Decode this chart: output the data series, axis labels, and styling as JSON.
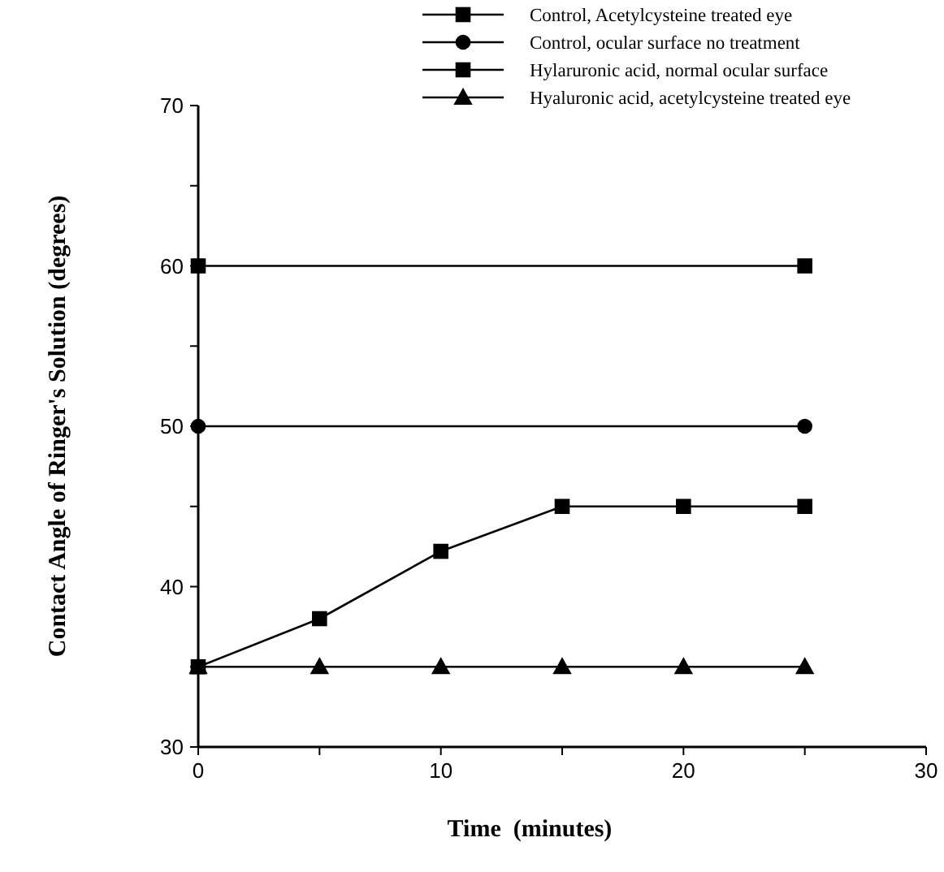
{
  "chart_data": {
    "type": "line",
    "xlabel": "Time  (minutes)",
    "ylabel": "Contact Angle of Ringer's Solution (degrees)",
    "xlim": [
      0,
      30
    ],
    "xticks": [
      0,
      {
        "value": 5,
        "label": null
      },
      10,
      {
        "value": 15,
        "label": null
      },
      20,
      {
        "value": 25,
        "label": null
      },
      30
    ],
    "ylim": [
      30,
      70
    ],
    "yticks": [
      30,
      {
        "value": 35,
        "label": null
      },
      40,
      {
        "value": 45,
        "label": null
      },
      50,
      {
        "value": 55,
        "label": null
      },
      60,
      {
        "value": 65,
        "label": null
      },
      70
    ],
    "legend": "top right",
    "grid": false,
    "line_style": "solid",
    "series": [
      {
        "name": "Control, Acetylcysteine treated eye",
        "color": "#000000",
        "marker": "square",
        "x": [
          0,
          25
        ],
        "values": [
          60,
          60
        ]
      },
      {
        "name": "Control, ocular surface no treatment",
        "color": "#000000",
        "marker": "circle",
        "x": [
          0,
          25
        ],
        "values": [
          50,
          50
        ]
      },
      {
        "name": "Hylaruronic acid, normal ocular surface",
        "color": "#000000",
        "marker": "square",
        "x": [
          0,
          5,
          10,
          15,
          20,
          25
        ],
        "values": [
          35,
          38,
          42.2,
          45,
          45,
          45
        ]
      },
      {
        "name": "Hyaluronic acid, acetylcysteine treated eye",
        "color": "#000000",
        "marker": "triangle",
        "x": [
          0,
          5,
          10,
          15,
          20,
          25
        ],
        "values": [
          35,
          35,
          35,
          35,
          35,
          35
        ]
      }
    ]
  }
}
